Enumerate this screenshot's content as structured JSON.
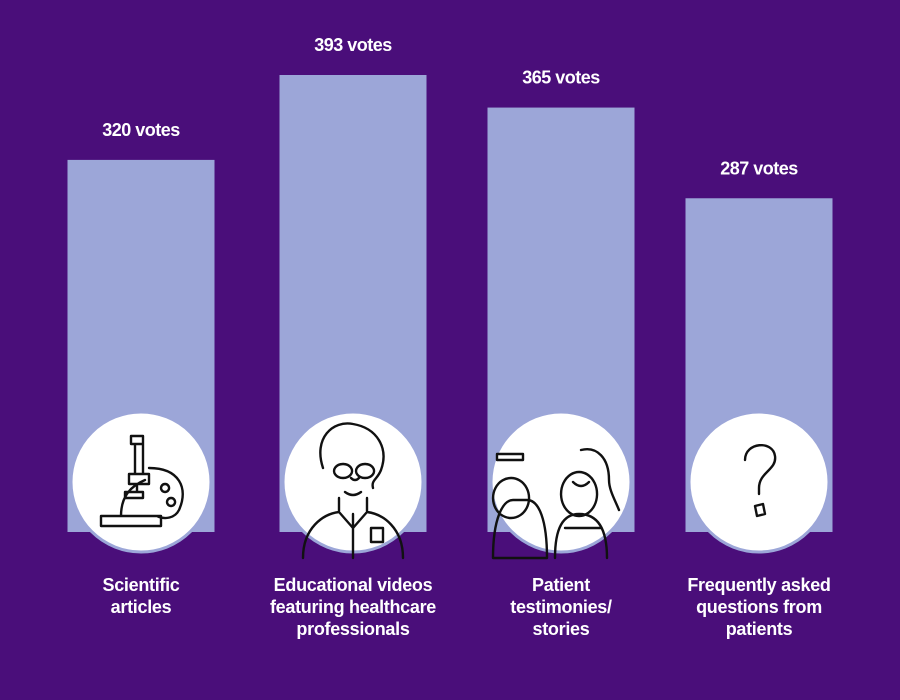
{
  "chart_data": {
    "type": "bar",
    "categories": [
      "Scientific articles",
      "Educational videos featuring healthcare professionals",
      "Patient testimonies/ stories",
      "Frequently asked questions from patients"
    ],
    "values": [
      320,
      393,
      365,
      287
    ],
    "value_labels": [
      "320 votes",
      "393 votes",
      "365 votes",
      "287 votes"
    ],
    "color": "#9ca6d8"
  }
}
